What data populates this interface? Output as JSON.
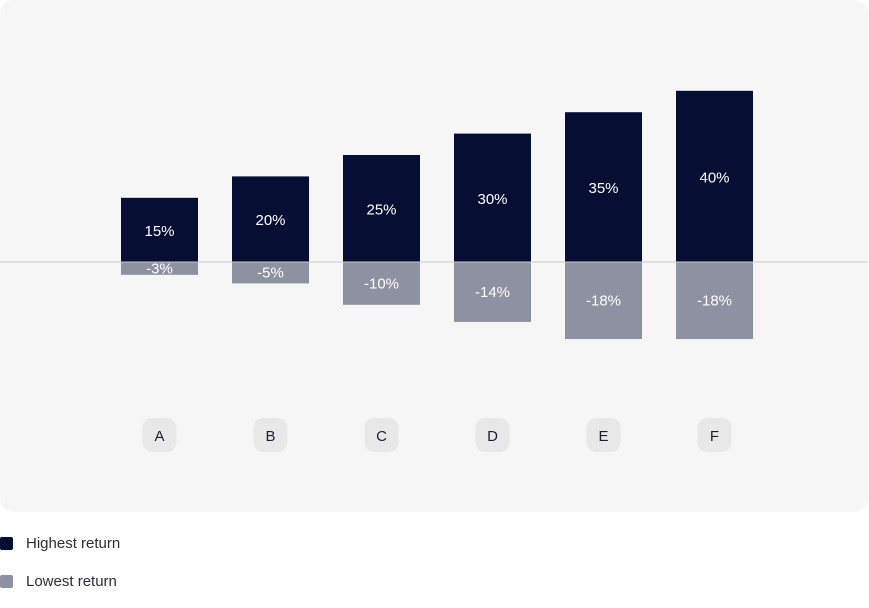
{
  "chart_data": {
    "type": "bar",
    "categories": [
      "A",
      "B",
      "C",
      "D",
      "E",
      "F"
    ],
    "series": [
      {
        "name": "Highest return",
        "values": [
          15,
          20,
          25,
          30,
          35,
          40
        ],
        "labels": [
          "15%",
          "20%",
          "25%",
          "30%",
          "35%",
          "40%"
        ],
        "color": "#060f33"
      },
      {
        "name": "Lowest return",
        "values": [
          -3,
          -5,
          -10,
          -14,
          -18,
          -18
        ],
        "labels": [
          "-3%",
          "-5%",
          "-10%",
          "-14%",
          "-18%",
          "-18%"
        ],
        "color": "#8d91a1"
      }
    ],
    "unit": "%",
    "grid": false,
    "zero_line": true,
    "legend_position": "bottom-left",
    "colors": {
      "background": "#f6f6f6",
      "category_pill": "#e8e8e8",
      "zero_line": "#c9c9c9"
    }
  }
}
